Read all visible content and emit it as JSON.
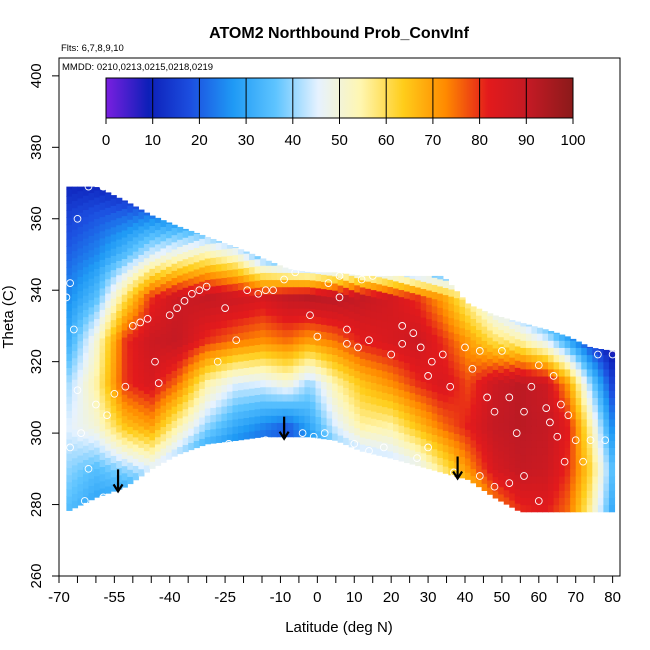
{
  "chart_data": {
    "type": "heatmap",
    "title": "ATOM2 Northbound Prob_ConvInf",
    "notes": [
      "Flts: 6,7,8,9,10",
      "MMDD: 0210,0213,0215,0218,0219"
    ],
    "xlabel": "Latitude (deg N)",
    "ylabel": "Theta (C)",
    "xlim": [
      -70,
      82
    ],
    "ylim": [
      260,
      405
    ],
    "xticks": [
      -70,
      -55,
      -40,
      -25,
      -10,
      0,
      10,
      20,
      30,
      40,
      50,
      60,
      70,
      80
    ],
    "xtick_labels": [
      "-70",
      "-55",
      "-40",
      "-25",
      "-10",
      "0",
      "10",
      "20",
      "30",
      "40",
      "50",
      "60",
      "70",
      "80"
    ],
    "xminor_step": 5,
    "yticks": [
      260,
      280,
      300,
      320,
      340,
      360,
      380,
      400
    ],
    "ytick_labels": [
      "260",
      "280",
      "300",
      "320",
      "340",
      "360",
      "380",
      "400"
    ],
    "colorbar": {
      "min": 0,
      "max": 100,
      "ticks": [
        0,
        10,
        20,
        30,
        40,
        50,
        60,
        70,
        80,
        90,
        100
      ],
      "tick_labels": [
        "0",
        "10",
        "20",
        "30",
        "40",
        "50",
        "60",
        "70",
        "80",
        "90",
        "100"
      ],
      "colors": [
        "#7a1fe0",
        "#0d1fb8",
        "#1c4fe0",
        "#1f9af5",
        "#5ec4ff",
        "#e6f2ff",
        "#fff6b0",
        "#ffcd1a",
        "#ff8a00",
        "#e31a1c",
        "#c11a24",
        "#8b1a1a"
      ]
    },
    "field": {
      "lat": [
        -68,
        -60,
        -52,
        -45,
        -38,
        -30,
        -22,
        -15,
        -8,
        -2,
        5,
        12,
        20,
        27,
        34,
        41,
        48,
        55,
        62,
        68,
        74,
        80
      ],
      "theta": [
        278,
        290,
        302,
        314,
        326,
        338,
        350,
        362,
        370
      ],
      "top": [
        369,
        369,
        365,
        361,
        358,
        355,
        352,
        349,
        346,
        345,
        345,
        344,
        344,
        344,
        344,
        336,
        333,
        331,
        329,
        327,
        324,
        323
      ],
      "bottom": [
        278,
        282,
        285,
        290,
        294,
        297,
        298,
        299,
        299,
        299,
        298,
        295,
        293,
        291,
        289,
        287,
        282,
        278,
        278,
        278,
        278,
        278
      ],
      "values": [
        [
          35,
          28,
          22,
          18,
          14,
          10,
          8,
          6,
          6,
          8,
          12,
          18,
          24,
          30,
          40,
          55,
          70,
          80,
          82,
          75,
          55,
          30
        ],
        [
          40,
          35,
          40,
          45,
          35,
          22,
          18,
          15,
          15,
          18,
          30,
          35,
          40,
          45,
          58,
          72,
          85,
          90,
          88,
          80,
          62,
          35
        ],
        [
          45,
          50,
          65,
          70,
          55,
          40,
          30,
          25,
          20,
          30,
          45,
          55,
          55,
          65,
          75,
          82,
          90,
          92,
          90,
          82,
          55,
          25
        ],
        [
          40,
          55,
          80,
          85,
          75,
          55,
          45,
          45,
          50,
          40,
          55,
          65,
          72,
          80,
          85,
          78,
          88,
          92,
          88,
          70,
          40,
          15
        ],
        [
          30,
          50,
          80,
          88,
          90,
          80,
          75,
          72,
          75,
          70,
          75,
          82,
          85,
          88,
          80,
          70,
          60,
          55,
          45,
          30,
          15,
          5
        ],
        [
          25,
          35,
          60,
          80,
          88,
          90,
          88,
          85,
          90,
          92,
          92,
          90,
          86,
          80,
          70,
          55,
          40,
          30,
          20,
          10,
          5,
          0
        ],
        [
          20,
          25,
          35,
          45,
          50,
          55,
          50,
          35,
          25,
          20,
          20,
          18,
          15,
          12,
          10,
          8,
          5,
          3,
          2,
          0,
          0,
          0
        ],
        [
          15,
          18,
          20,
          22,
          22,
          20,
          15,
          10,
          8,
          6,
          5,
          5,
          4,
          3,
          2,
          1,
          0,
          0,
          0,
          0,
          0,
          0
        ],
        [
          10,
          10,
          8,
          6,
          5,
          4,
          3,
          2,
          1,
          1,
          0,
          0,
          0,
          0,
          0,
          0,
          0,
          0,
          0,
          0,
          0,
          0
        ]
      ]
    },
    "arrows_lat": [
      -54,
      -9,
      38
    ],
    "points": [
      [
        -67,
        342
      ],
      [
        -68,
        338
      ],
      [
        -65,
        360
      ],
      [
        -62,
        369
      ],
      [
        -58,
        369
      ],
      [
        -66,
        329
      ],
      [
        -65,
        312
      ],
      [
        -64,
        300
      ],
      [
        -67,
        296
      ],
      [
        -62,
        290
      ],
      [
        -63,
        281
      ],
      [
        -58,
        282
      ],
      [
        -60,
        308
      ],
      [
        -55,
        311
      ],
      [
        -57,
        305
      ],
      [
        -52,
        313
      ],
      [
        -50,
        330
      ],
      [
        -48,
        331
      ],
      [
        -46,
        332
      ],
      [
        -44,
        320
      ],
      [
        -43,
        314
      ],
      [
        -40,
        333
      ],
      [
        -38,
        335
      ],
      [
        -36,
        337
      ],
      [
        -34,
        339
      ],
      [
        -32,
        340
      ],
      [
        -30,
        341
      ],
      [
        -27,
        320
      ],
      [
        -25,
        335
      ],
      [
        -22,
        326
      ],
      [
        -19,
        340
      ],
      [
        -16,
        339
      ],
      [
        -14,
        340
      ],
      [
        -12,
        340
      ],
      [
        -9,
        343
      ],
      [
        -6,
        345
      ],
      [
        -3,
        347
      ],
      [
        -2,
        333
      ],
      [
        0,
        327
      ],
      [
        3,
        342
      ],
      [
        6,
        344
      ],
      [
        8,
        329
      ],
      [
        -24,
        297
      ],
      [
        -14,
        298
      ],
      [
        2,
        300
      ],
      [
        6,
        338
      ],
      [
        12,
        343
      ],
      [
        15,
        344
      ],
      [
        18,
        345
      ],
      [
        20,
        345
      ],
      [
        23,
        330
      ],
      [
        26,
        328
      ],
      [
        28,
        324
      ],
      [
        31,
        320
      ],
      [
        20,
        322
      ],
      [
        23,
        325
      ],
      [
        30,
        316
      ],
      [
        34,
        322
      ],
      [
        36,
        313
      ],
      [
        40,
        324
      ],
      [
        42,
        318
      ],
      [
        44,
        323
      ],
      [
        46,
        310
      ],
      [
        48,
        306
      ],
      [
        50,
        323
      ],
      [
        52,
        310
      ],
      [
        54,
        300
      ],
      [
        56,
        306
      ],
      [
        58,
        313
      ],
      [
        60,
        319
      ],
      [
        62,
        307
      ],
      [
        63,
        303
      ],
      [
        64,
        316
      ],
      [
        65,
        299
      ],
      [
        66,
        308
      ],
      [
        67,
        292
      ],
      [
        68,
        305
      ],
      [
        70,
        298
      ],
      [
        72,
        292
      ],
      [
        74,
        298
      ],
      [
        76,
        322
      ],
      [
        78,
        298
      ],
      [
        80,
        322
      ],
      [
        23,
        290
      ],
      [
        27,
        293
      ],
      [
        30,
        296
      ],
      [
        37,
        289
      ],
      [
        44,
        288
      ],
      [
        48,
        285
      ],
      [
        52,
        286
      ],
      [
        56,
        288
      ],
      [
        60,
        281
      ],
      [
        14,
        295
      ],
      [
        18,
        296
      ],
      [
        10,
        297
      ],
      [
        5,
        296
      ],
      [
        -1,
        299
      ],
      [
        -4,
        300
      ],
      [
        8,
        325
      ],
      [
        11,
        324
      ],
      [
        14,
        326
      ]
    ]
  }
}
